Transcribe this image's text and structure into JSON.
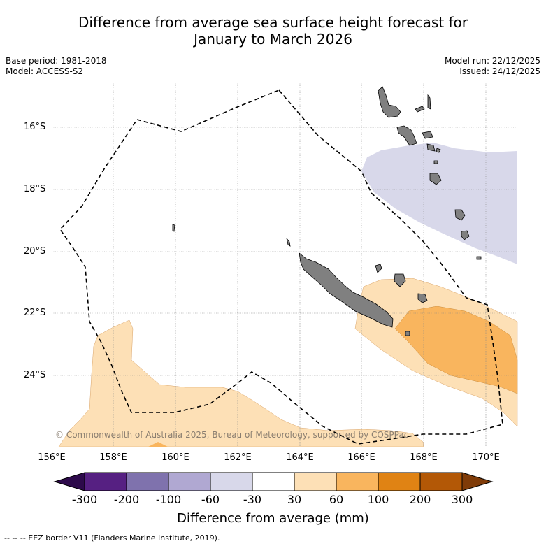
{
  "title_line1": "Difference from average sea surface height forecast for",
  "title_line2": "January to March 2026",
  "meta_left": {
    "base_period": "Base period: 1981-2018",
    "model": "Model: ACCESS-S2"
  },
  "meta_right": {
    "model_run": "Model run: 22/12/2025",
    "issued": "Issued: 24/12/2025"
  },
  "map": {
    "lat_labels": [
      "16°S",
      "18°S",
      "20°S",
      "22°S",
      "24°S"
    ],
    "lon_labels": [
      "156°E",
      "158°E",
      "160°E",
      "162°E",
      "164°E",
      "166°E",
      "168°E",
      "170°E"
    ],
    "credit": "© Commonwealth of Australia 2025, Bureau of Meteorology, supported by COSPPac",
    "colors": {
      "land": "#808080",
      "eez": "#000000"
    }
  },
  "colorbar": {
    "title": "Difference from average (mm)",
    "ticks": [
      "-300",
      "-200",
      "-100",
      "-60",
      "-30",
      "30",
      "60",
      "100",
      "200",
      "300"
    ],
    "colors": [
      "#2d0a4b",
      "#562082",
      "#7f72ad",
      "#b0a8d2",
      "#d8d8ea",
      "#ffffff",
      "#fde0b6",
      "#f9b55e",
      "#e08314",
      "#b35806",
      "#7f3b08"
    ]
  },
  "footer": "--  --  -- EEZ border V11 (Flanders Marine Institute, 2019)."
}
